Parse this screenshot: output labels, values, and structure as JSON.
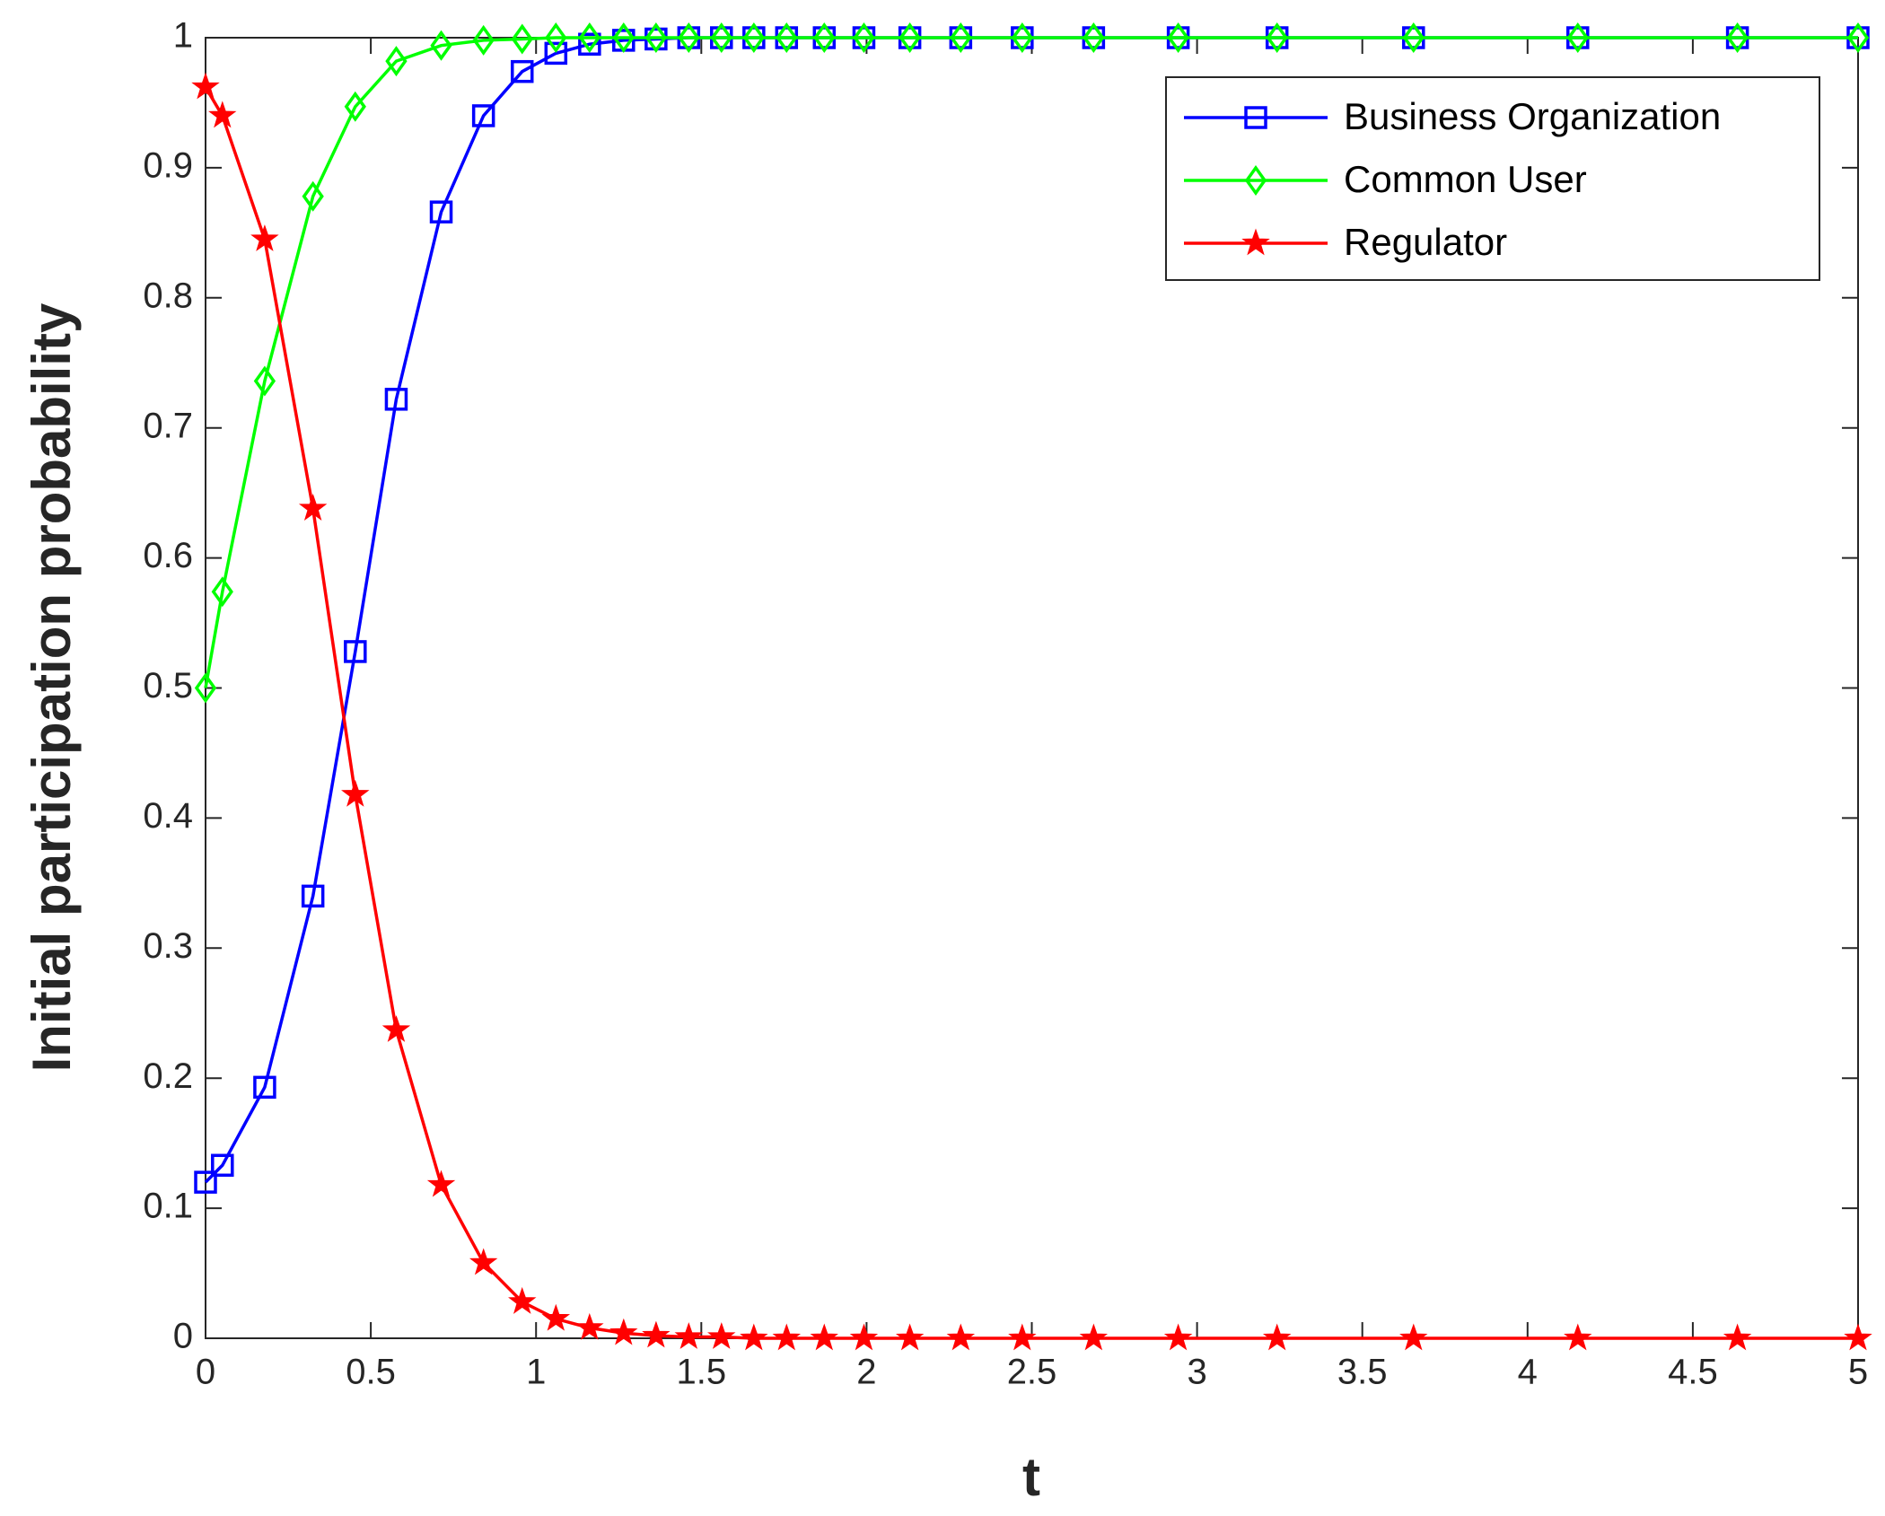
{
  "chart_data": {
    "type": "line",
    "x_label": "t",
    "y_label": "Initial participation probability",
    "x": [
      0,
      0.051,
      0.179,
      0.325,
      0.453,
      0.577,
      0.713,
      0.841,
      0.958,
      1.06,
      1.162,
      1.265,
      1.363,
      1.462,
      1.561,
      1.659,
      1.758,
      1.872,
      1.992,
      2.131,
      2.285,
      2.471,
      2.687,
      2.943,
      3.242,
      3.655,
      4.152,
      4.635,
      5
    ],
    "series": [
      {
        "name": "Business Organization",
        "color": "#0000ff",
        "marker": "square",
        "values": [
          0.12,
          0.133,
          0.193,
          0.34,
          0.528,
          0.722,
          0.866,
          0.94,
          0.974,
          0.988,
          0.995,
          0.998,
          0.999,
          1,
          1,
          1,
          1,
          1,
          1,
          1,
          1,
          1,
          1,
          1,
          1,
          1,
          1,
          1,
          1
        ]
      },
      {
        "name": "Common User",
        "color": "#00ff00",
        "marker": "diamond",
        "values": [
          0.5,
          0.574,
          0.736,
          0.878,
          0.947,
          0.982,
          0.994,
          0.998,
          0.999,
          1,
          1,
          1,
          1,
          1,
          1,
          1,
          1,
          1,
          1,
          1,
          1,
          1,
          1,
          1,
          1,
          1,
          1,
          1,
          1
        ]
      },
      {
        "name": "Regulator",
        "color": "#ff0000",
        "marker": "star",
        "values": [
          0.962,
          0.94,
          0.845,
          0.638,
          0.418,
          0.237,
          0.118,
          0.058,
          0.028,
          0.015,
          0.008,
          0.004,
          0.002,
          0.001,
          0.001,
          0,
          0,
          0,
          0,
          0,
          0,
          0,
          0,
          0,
          0,
          0,
          0,
          0,
          0
        ]
      }
    ],
    "xlim": [
      0,
      5
    ],
    "xticks": [
      0,
      0.5,
      1,
      1.5,
      2,
      2.5,
      3,
      3.5,
      4,
      4.5,
      5
    ],
    "ylim": [
      0,
      1
    ],
    "yticks": [
      0,
      0.1,
      0.2,
      0.3,
      0.4,
      0.5,
      0.6,
      0.7,
      0.8,
      0.9,
      1
    ],
    "legend": "top-right",
    "grid": false
  }
}
